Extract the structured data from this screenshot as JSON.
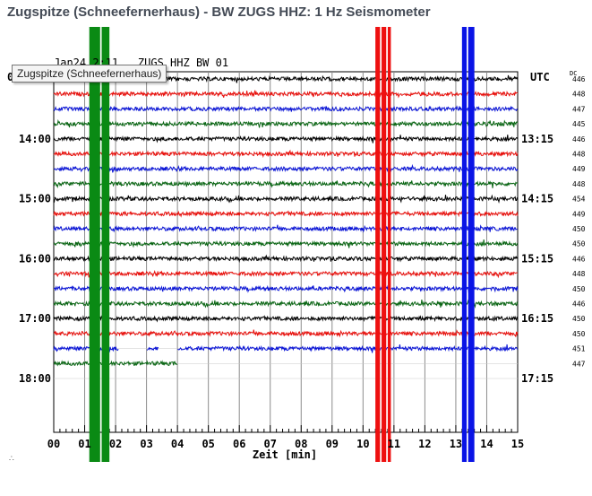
{
  "page": {
    "title": "Zugspitze (Schneefernerhaus) - BW ZUGS HHZ: 1 Hz Seismometer",
    "header_text": "Jan24 2:11   ZUGS HHZ BW 01",
    "tooltip_text": "Zugspitze (Schneefernerhaus)",
    "left_mark": "0",
    "utc_label": "UTC",
    "dc_label": "DC",
    "corner_glyph": "∴"
  },
  "colors": {
    "trace_cycle": [
      "#000000",
      "#e8100c",
      "#0a14d6",
      "#0a6614"
    ],
    "event_green": "#0a8a14",
    "event_red": "#ee1010",
    "event_blue": "#0a14e6",
    "grid": "#8c8c8c"
  },
  "chart_data": {
    "type": "helicorder",
    "title": "Zugspitze (Schneefernerhaus) - BW ZUGS HHZ: 1 Hz Seismometer",
    "xlabel": "Zeit [min]",
    "xlim": [
      0,
      15
    ],
    "x_ticks": [
      "00",
      "01",
      "02",
      "03",
      "04",
      "05",
      "06",
      "07",
      "08",
      "09",
      "10",
      "11",
      "12",
      "13",
      "14",
      "15"
    ],
    "left_time_labels": [
      {
        "row": 4,
        "label": "14:00"
      },
      {
        "row": 8,
        "label": "15:00"
      },
      {
        "row": 12,
        "label": "16:00"
      },
      {
        "row": 16,
        "label": "17:00"
      },
      {
        "row": 20,
        "label": "18:00"
      }
    ],
    "right_utc_labels": [
      {
        "row": 4,
        "label": "13:15"
      },
      {
        "row": 8,
        "label": "14:15"
      },
      {
        "row": 12,
        "label": "15:15"
      },
      {
        "row": 16,
        "label": "16:15"
      },
      {
        "row": 20,
        "label": "17:15"
      }
    ],
    "dc_values": [
      446,
      448,
      447,
      445,
      446,
      448,
      449,
      448,
      454,
      449,
      450,
      450,
      446,
      448,
      450,
      446,
      450,
      450,
      451,
      447
    ],
    "row_count": 21,
    "traces": [
      {
        "row": 0,
        "color_index": 0,
        "x_start": 0,
        "x_end": 15
      },
      {
        "row": 1,
        "color_index": 1,
        "x_start": 0,
        "x_end": 15
      },
      {
        "row": 2,
        "color_index": 2,
        "x_start": 0,
        "x_end": 15
      },
      {
        "row": 3,
        "color_index": 3,
        "x_start": 0,
        "x_end": 15
      },
      {
        "row": 4,
        "color_index": 0,
        "x_start": 0,
        "x_end": 15
      },
      {
        "row": 5,
        "color_index": 1,
        "x_start": 0,
        "x_end": 15
      },
      {
        "row": 6,
        "color_index": 2,
        "x_start": 0,
        "x_end": 15
      },
      {
        "row": 7,
        "color_index": 3,
        "x_start": 0,
        "x_end": 15
      },
      {
        "row": 8,
        "color_index": 0,
        "x_start": 0,
        "x_end": 15
      },
      {
        "row": 9,
        "color_index": 1,
        "x_start": 0,
        "x_end": 15
      },
      {
        "row": 10,
        "color_index": 2,
        "x_start": 0,
        "x_end": 15
      },
      {
        "row": 11,
        "color_index": 3,
        "x_start": 0,
        "x_end": 15
      },
      {
        "row": 12,
        "color_index": 0,
        "x_start": 0,
        "x_end": 15
      },
      {
        "row": 13,
        "color_index": 1,
        "x_start": 0,
        "x_end": 15
      },
      {
        "row": 14,
        "color_index": 2,
        "x_start": 0,
        "x_end": 15
      },
      {
        "row": 15,
        "color_index": 3,
        "x_start": 0,
        "x_end": 15
      },
      {
        "row": 16,
        "color_index": 0,
        "x_start": 0,
        "x_end": 15
      },
      {
        "row": 17,
        "color_index": 1,
        "x_start": 0,
        "x_end": 15
      },
      {
        "row": 18,
        "color_index": 2,
        "x_start": 0,
        "x_end": 15,
        "gaps": [
          [
            2.1,
            3.0
          ],
          [
            3.4,
            4.0
          ]
        ]
      },
      {
        "row": 19,
        "color_index": 3,
        "x_start": 0,
        "x_end": 4.0
      }
    ],
    "event_bands": [
      {
        "name": "green-event",
        "color": "#0a8a14",
        "x": [
          1.15,
          1.3,
          1.55,
          1.7
        ],
        "width": [
          0.35,
          0.15,
          0.2,
          0.1
        ]
      },
      {
        "name": "red-event",
        "color": "#ee1010",
        "x": [
          10.4,
          10.6,
          10.8
        ],
        "width": [
          0.15,
          0.15,
          0.1
        ]
      },
      {
        "name": "blue-event",
        "color": "#0a14e6",
        "x": [
          13.2,
          13.4
        ],
        "width": [
          0.15,
          0.2
        ]
      }
    ]
  }
}
